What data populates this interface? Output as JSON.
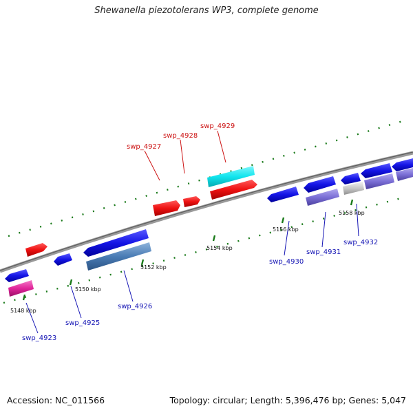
{
  "title": "Shewanella piezotolerans WP3, complete genome",
  "accession_text": "Accession: NC_011566",
  "topology_text": "Topology: circular; Length: 5,396,476 bp; Genes: 5,047",
  "colors": {
    "forward_cds": "#ee1111",
    "reverse_cds": "#1414e6",
    "cyan_feature": "#11e5ee",
    "magenta_feature": "#e0259a",
    "steel_feature": "#4a7cb5",
    "lavender_feature": "#7b6fd6",
    "gray_feature": "#c8c8c8",
    "forward_label": "#cc1111",
    "reverse_label": "#1414b4",
    "tick": "#1a7a1a",
    "backbone": "#7a7a7a"
  },
  "scale_labels": [
    "5148 kbp",
    "5150 kbp",
    "5152 kbp",
    "5154 kbp",
    "5156 kbp",
    "5158 kbp"
  ],
  "genes": {
    "forward": [
      {
        "label": "swp_4927",
        "start_kbp": 5153.2,
        "end_kbp": 5153.8
      },
      {
        "label": "swp_4928",
        "start_kbp": 5154.0,
        "end_kbp": 5154.3
      },
      {
        "label": "swp_4929",
        "start_kbp": 5154.4,
        "end_kbp": 5155.5
      },
      {
        "label": "",
        "start_kbp": 5148.3,
        "end_kbp": 5148.8
      }
    ],
    "reverse": [
      {
        "label": "swp_4923",
        "start_kbp": 5147.6,
        "end_kbp": 5148.1
      },
      {
        "label": "swp_4925",
        "start_kbp": 5149.1,
        "end_kbp": 5149.5
      },
      {
        "label": "swp_4926",
        "start_kbp": 5150.0,
        "end_kbp": 5152.0
      },
      {
        "label": "swp_4930",
        "start_kbp": 5155.9,
        "end_kbp": 5156.6
      },
      {
        "label": "swp_4931",
        "start_kbp": 5156.9,
        "end_kbp": 5157.7
      },
      {
        "label": "swp_4932",
        "start_kbp": 5157.9,
        "end_kbp": 5158.3
      }
    ]
  }
}
